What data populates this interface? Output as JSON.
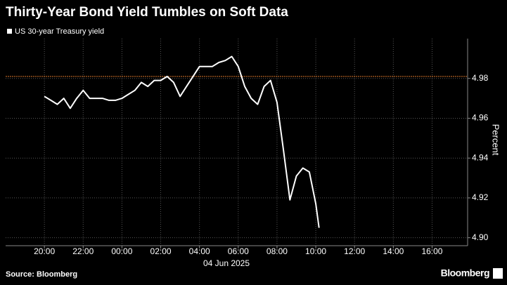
{
  "chart_data": {
    "type": "line",
    "title": "Thirty-Year Bond Yield Tumbles on Soft Data",
    "y_label": "Percent",
    "x_label": "04 Jun 2025",
    "source": "Source: Bloomberg",
    "brand": "Bloomberg",
    "x": [
      "20:00",
      "20:20",
      "20:40",
      "21:00",
      "21:20",
      "21:40",
      "22:00",
      "22:20",
      "22:40",
      "23:00",
      "23:20",
      "23:40",
      "00:00",
      "00:20",
      "00:40",
      "01:00",
      "01:20",
      "01:40",
      "02:00",
      "02:20",
      "02:40",
      "03:00",
      "03:20",
      "03:40",
      "04:00",
      "04:20",
      "04:40",
      "05:00",
      "05:20",
      "05:40",
      "06:00",
      "06:20",
      "06:40",
      "07:00",
      "07:20",
      "07:40",
      "08:00",
      "08:20",
      "08:40",
      "09:00",
      "09:20",
      "09:40",
      "10:00",
      "10:10"
    ],
    "series": [
      {
        "name": "US 30-year Treasury yield",
        "color": "#ffffff",
        "values": [
          4.971,
          4.969,
          4.967,
          4.97,
          4.965,
          4.97,
          4.974,
          4.97,
          4.97,
          4.97,
          4.969,
          4.969,
          4.97,
          4.972,
          4.974,
          4.978,
          4.976,
          4.979,
          4.979,
          4.981,
          4.978,
          4.971,
          4.976,
          4.981,
          4.986,
          4.986,
          4.986,
          4.988,
          4.989,
          4.991,
          4.986,
          4.976,
          4.97,
          4.967,
          4.976,
          4.979,
          4.968,
          4.944,
          4.919,
          4.931,
          4.935,
          4.933,
          4.917,
          4.905
        ]
      }
    ],
    "xlim": [
      "18:00",
      "17:50"
    ],
    "xticks": [
      "20:00",
      "22:00",
      "00:00",
      "02:00",
      "04:00",
      "06:00",
      "08:00",
      "10:00",
      "12:00",
      "14:00",
      "16:00"
    ],
    "ylim": [
      4.896,
      5.0
    ],
    "yticks": [
      {
        "value": 4.9,
        "label": "4.90"
      },
      4.92,
      4.94,
      4.96,
      4.98
    ],
    "reference_line": {
      "value": 4.981,
      "color": "#d9772b"
    },
    "grid": true
  }
}
